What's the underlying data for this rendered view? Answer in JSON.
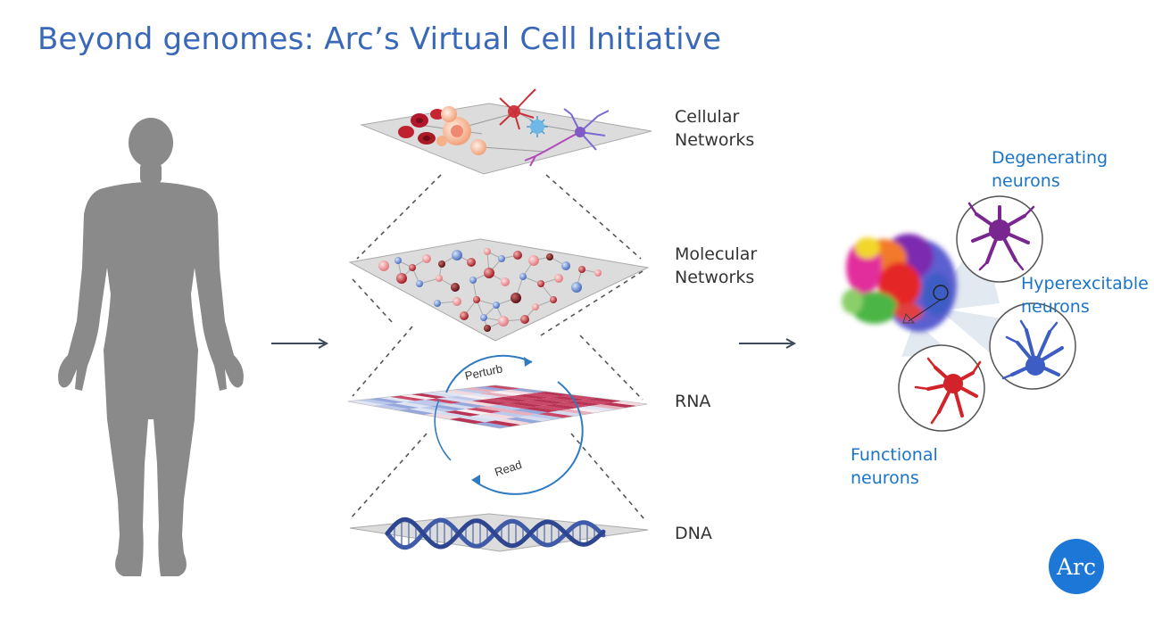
{
  "title": "Beyond genomes: Arc’s Virtual Cell Initiative",
  "layers": [
    {
      "line1": "Cellular",
      "line2": "Networks"
    },
    {
      "line1": "Molecular",
      "line2": "Networks"
    },
    {
      "line1": "RNA",
      "line2": ""
    },
    {
      "line1": "DNA",
      "line2": ""
    }
  ],
  "cycle": {
    "top": "Perturb",
    "bottom": "Read"
  },
  "neuron_states": [
    {
      "line1": "Degenerating",
      "line2": "neurons",
      "color": "#7a2690"
    },
    {
      "line1": "Hyperexcitable",
      "line2": "neurons",
      "color": "#3d5cc4"
    },
    {
      "line1": "Functional",
      "line2": "neurons",
      "color": "#d2232a"
    }
  ],
  "logo": "Arc",
  "colors": {
    "title": "#3a68b8",
    "accent": "#1a74c8",
    "silhouette": "#8a8a8a"
  }
}
